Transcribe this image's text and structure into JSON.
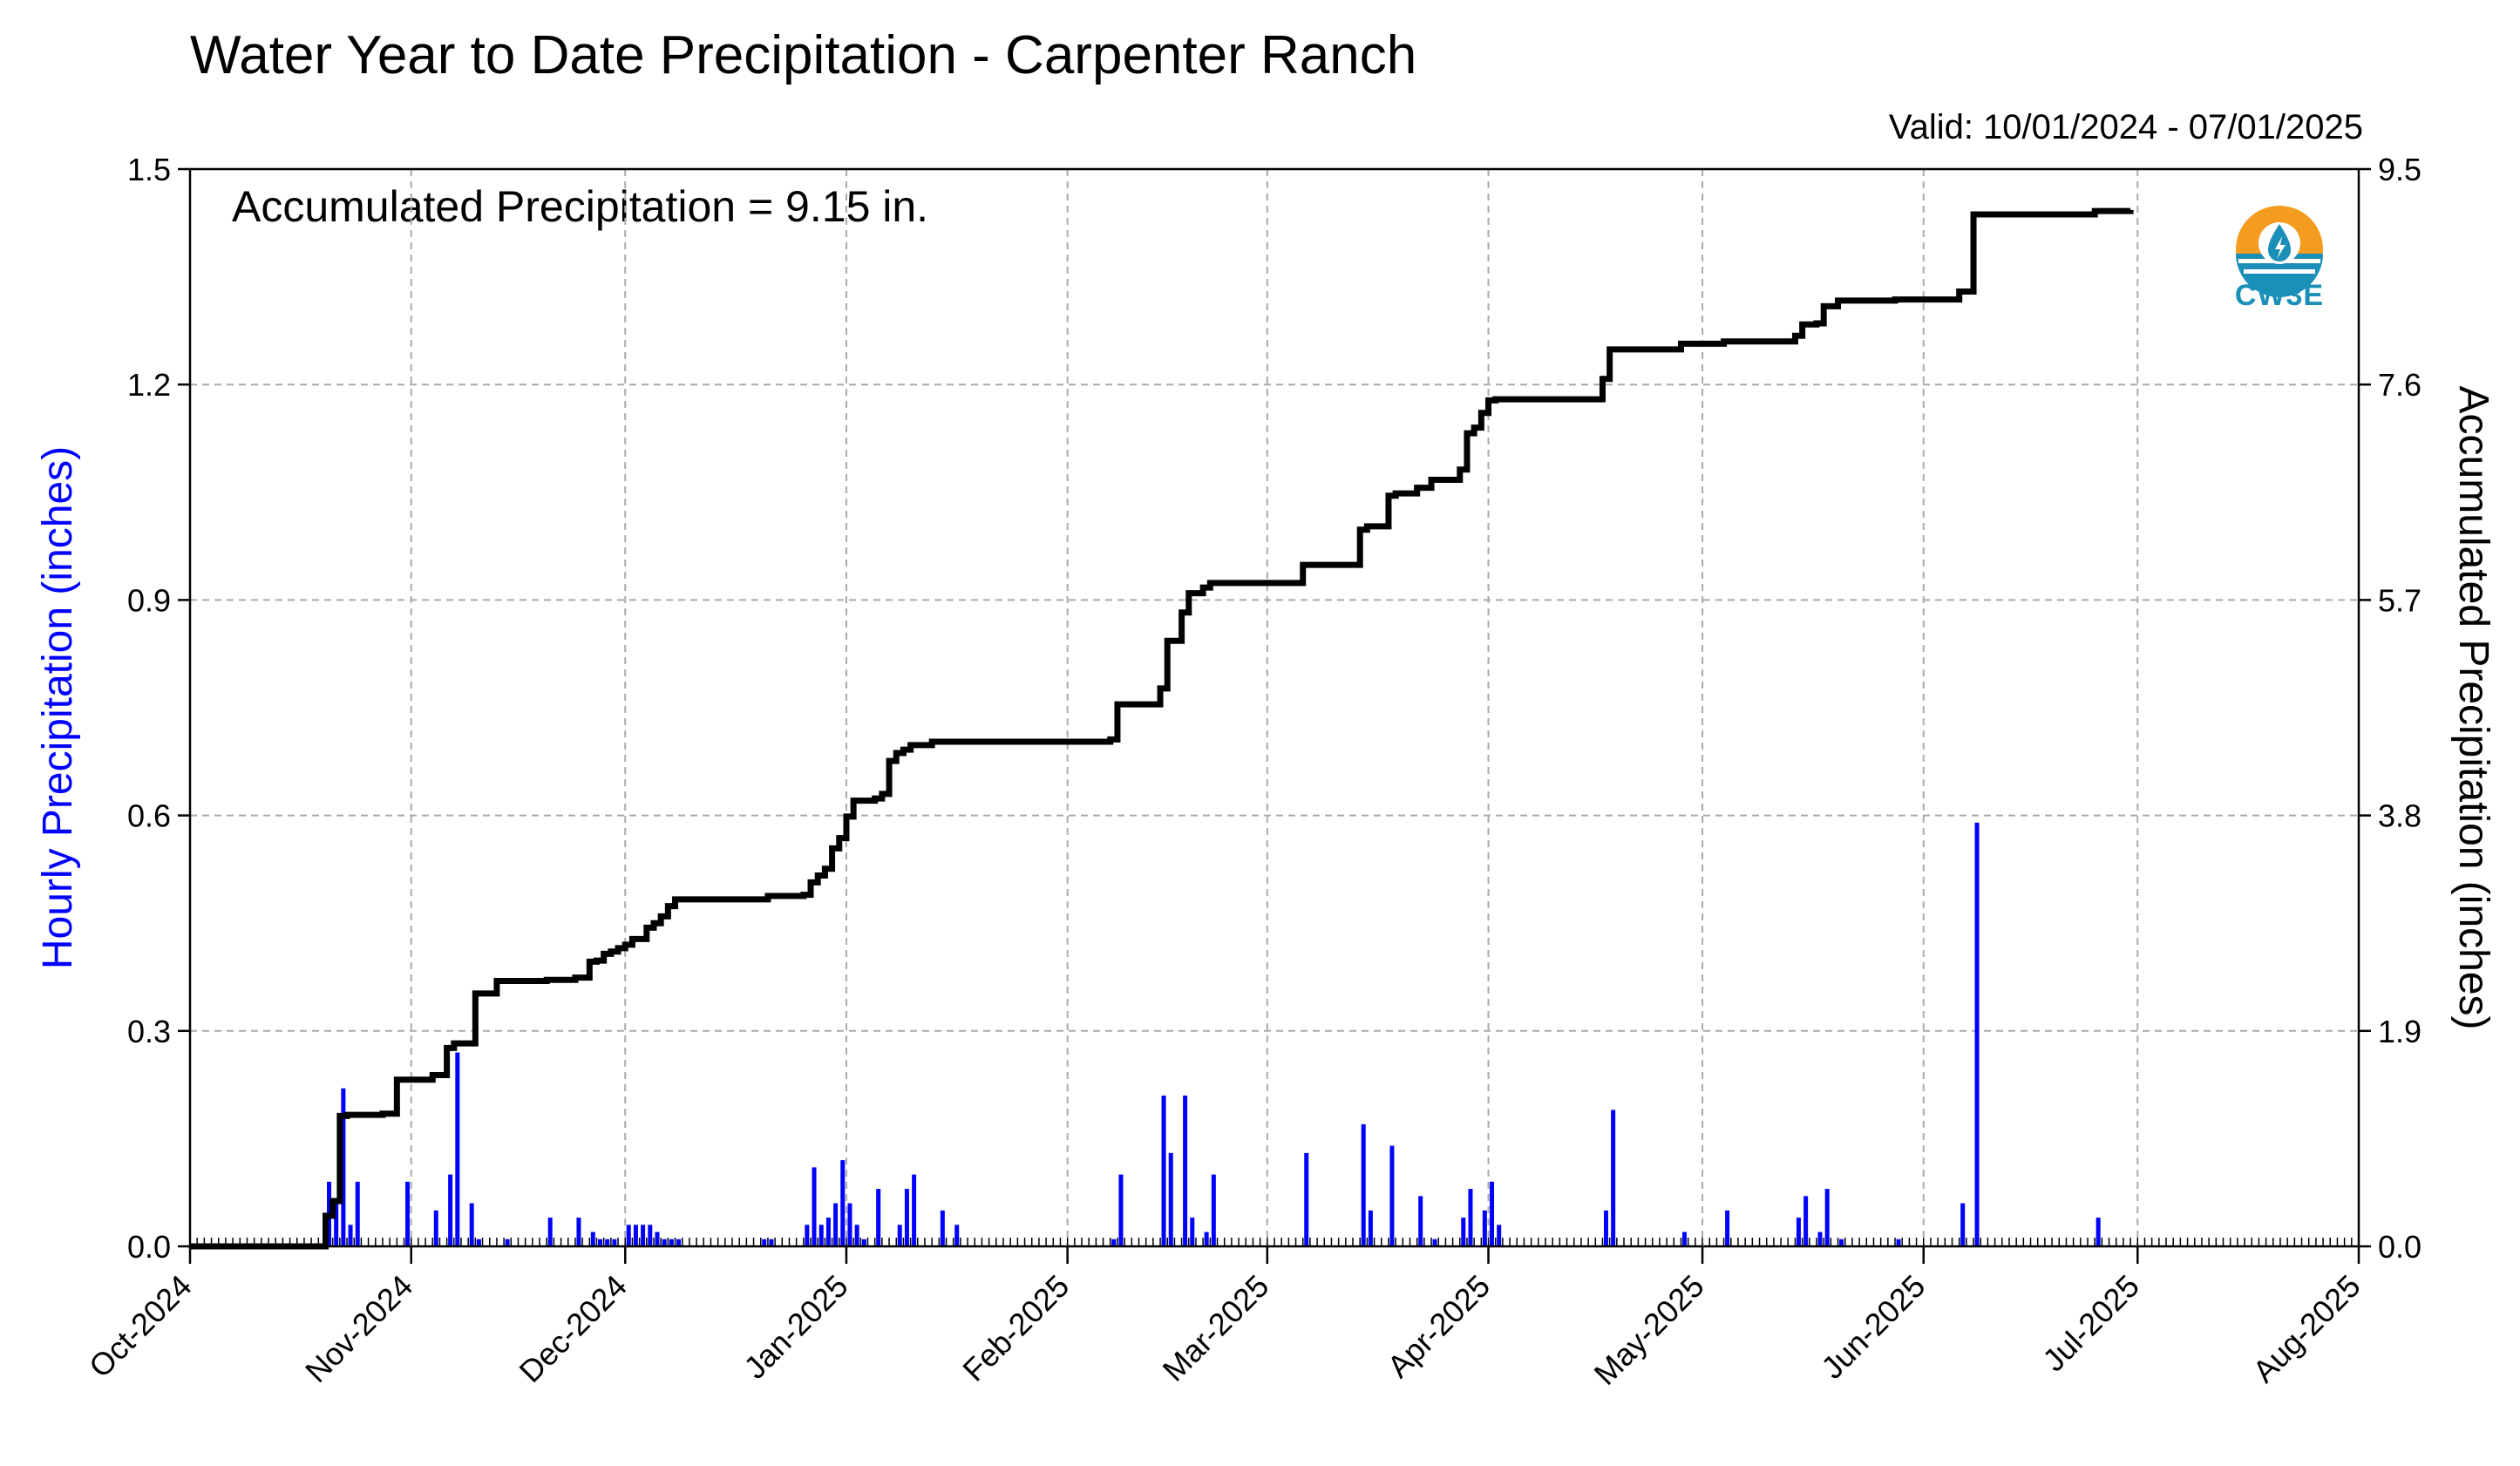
{
  "chart_data": {
    "type": "bar",
    "title": "Water Year to Date Precipitation - Carpenter Ranch",
    "subtitle": "Valid: 10/01/2024 - 07/01/2025",
    "annotation": "Accumulated Precipitation = 9.15 in.",
    "ylabel": "Hourly Precipitation (inches)",
    "ylabel_right": "Accumulated Precipitation (inches)",
    "ylim": [
      0,
      1.5
    ],
    "ylim_right": [
      0,
      9.5
    ],
    "yticks": [
      "0.0",
      "0.3",
      "0.6",
      "0.9",
      "1.2",
      "1.5"
    ],
    "yticks_right": [
      "0.0",
      "1.9",
      "3.8",
      "5.7",
      "7.6",
      "9.5"
    ],
    "xlim": [
      "2024-10-01",
      "2025-08-01"
    ],
    "xticks": [
      "Oct-2024",
      "Nov-2024",
      "Dec-2024",
      "Jan-2025",
      "Feb-2025",
      "Mar-2025",
      "Apr-2025",
      "May-2025",
      "Jun-2025",
      "Jul-2025",
      "Aug-2025"
    ],
    "grid": true,
    "colors": {
      "hourly": "#0000ff",
      "accumulated": "#000000"
    },
    "series": [
      {
        "type": "bar",
        "axis": "left",
        "x": [
          "2024-10-20",
          "2024-10-21",
          "2024-10-22",
          "2024-10-23",
          "2024-10-24",
          "2024-10-31",
          "2024-11-04",
          "2024-11-06",
          "2024-11-07",
          "2024-11-09",
          "2024-11-10",
          "2024-11-14",
          "2024-11-20",
          "2024-11-24",
          "2024-11-26",
          "2024-11-27",
          "2024-11-28",
          "2024-11-29",
          "2024-12-01",
          "2024-12-02",
          "2024-12-03",
          "2024-12-04",
          "2024-12-05",
          "2024-12-06",
          "2024-12-07",
          "2024-12-08",
          "2024-12-20",
          "2024-12-21",
          "2024-12-26",
          "2024-12-27",
          "2024-12-28",
          "2024-12-29",
          "2024-12-30",
          "2024-12-31",
          "2025-01-01",
          "2025-01-02",
          "2025-01-03",
          "2025-01-05",
          "2025-01-08",
          "2025-01-09",
          "2025-01-10",
          "2025-01-14",
          "2025-01-16",
          "2025-02-07",
          "2025-02-08",
          "2025-02-14",
          "2025-02-15",
          "2025-02-17",
          "2025-02-18",
          "2025-02-20",
          "2025-02-21",
          "2025-03-06",
          "2025-03-14",
          "2025-03-15",
          "2025-03-18",
          "2025-03-22",
          "2025-03-24",
          "2025-03-28",
          "2025-03-29",
          "2025-03-31",
          "2025-04-01",
          "2025-04-02",
          "2025-04-17",
          "2025-04-18",
          "2025-04-28",
          "2025-05-04",
          "2025-05-14",
          "2025-05-15",
          "2025-05-17",
          "2025-05-18",
          "2025-05-20",
          "2025-05-28",
          "2025-06-06",
          "2025-06-08",
          "2025-06-25"
        ],
        "values": [
          0.09,
          0.06,
          0.22,
          0.03,
          0.09,
          0.09,
          0.05,
          0.1,
          0.27,
          0.06,
          0.01,
          0.01,
          0.04,
          0.04,
          0.02,
          0.01,
          0.01,
          0.01,
          0.03,
          0.03,
          0.03,
          0.03,
          0.02,
          0.01,
          0.01,
          0.01,
          0.01,
          0.01,
          0.03,
          0.11,
          0.03,
          0.04,
          0.06,
          0.12,
          0.06,
          0.03,
          0.01,
          0.08,
          0.03,
          0.08,
          0.1,
          0.05,
          0.03,
          0.01,
          0.1,
          0.21,
          0.13,
          0.21,
          0.04,
          0.02,
          0.1,
          0.13,
          0.17,
          0.05,
          0.14,
          0.07,
          0.01,
          0.04,
          0.08,
          0.05,
          0.09,
          0.03,
          0.05,
          0.19,
          0.02,
          0.05,
          0.04,
          0.07,
          0.02,
          0.08,
          0.01,
          0.01,
          0.06,
          0.59,
          0.04
        ]
      },
      {
        "type": "line",
        "axis": "right",
        "step": true,
        "x": [
          "2024-10-01",
          "2024-10-20",
          "2024-10-21",
          "2024-10-22",
          "2024-10-23",
          "2024-10-28",
          "2024-10-30",
          "2024-11-03",
          "2024-11-04",
          "2024-11-05",
          "2024-11-06",
          "2024-11-07",
          "2024-11-10",
          "2024-11-13",
          "2024-11-20",
          "2024-11-24",
          "2024-11-26",
          "2024-11-27",
          "2024-11-28",
          "2024-11-29",
          "2024-11-30",
          "2024-12-01",
          "2024-12-02",
          "2024-12-04",
          "2024-12-05",
          "2024-12-06",
          "2024-12-07",
          "2024-12-08",
          "2024-12-20",
          "2024-12-21",
          "2024-12-26",
          "2024-12-27",
          "2024-12-28",
          "2024-12-29",
          "2024-12-30",
          "2024-12-31",
          "2025-01-01",
          "2025-01-02",
          "2025-01-05",
          "2025-01-06",
          "2025-01-07",
          "2025-01-08",
          "2025-01-09",
          "2025-01-10",
          "2025-01-13",
          "2025-01-16",
          "2025-02-07",
          "2025-02-08",
          "2025-02-14",
          "2025-02-15",
          "2025-02-17",
          "2025-02-18",
          "2025-02-20",
          "2025-02-21",
          "2025-03-06",
          "2025-03-07",
          "2025-03-14",
          "2025-03-15",
          "2025-03-18",
          "2025-03-19",
          "2025-03-22",
          "2025-03-24",
          "2025-03-28",
          "2025-03-29",
          "2025-03-30",
          "2025-03-31",
          "2025-04-01",
          "2025-04-02",
          "2025-04-17",
          "2025-04-18",
          "2025-04-28",
          "2025-05-04",
          "2025-05-14",
          "2025-05-15",
          "2025-05-17",
          "2025-05-18",
          "2025-05-20",
          "2025-05-28",
          "2025-06-06",
          "2025-06-08",
          "2025-06-25",
          "2025-06-30"
        ],
        "values": [
          0.0,
          0.27,
          0.4,
          1.15,
          1.16,
          1.17,
          1.47,
          1.47,
          1.51,
          1.51,
          1.75,
          1.79,
          2.23,
          2.34,
          2.35,
          2.37,
          2.51,
          2.52,
          2.58,
          2.6,
          2.63,
          2.66,
          2.71,
          2.81,
          2.85,
          2.91,
          3.0,
          3.06,
          3.06,
          3.09,
          3.1,
          3.21,
          3.27,
          3.33,
          3.51,
          3.6,
          3.79,
          3.93,
          3.95,
          3.99,
          4.28,
          4.35,
          4.38,
          4.42,
          4.45,
          4.45,
          4.47,
          4.78,
          4.92,
          5.34,
          5.59,
          5.76,
          5.81,
          5.85,
          6.01,
          6.01,
          6.32,
          6.35,
          6.62,
          6.64,
          6.69,
          6.76,
          6.85,
          7.17,
          7.22,
          7.35,
          7.46,
          7.47,
          7.65,
          7.91,
          7.96,
          7.98,
          8.03,
          8.13,
          8.14,
          8.29,
          8.34,
          8.35,
          8.42,
          9.1,
          9.13,
          9.14
        ]
      }
    ]
  },
  "logo": {
    "text": "CW3E",
    "icon": "cw3e-water-drop-sun-icon"
  }
}
